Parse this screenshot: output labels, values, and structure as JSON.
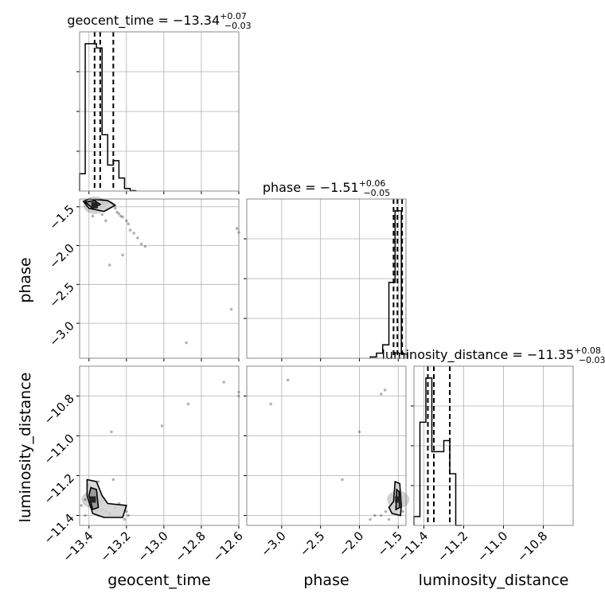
{
  "params": [
    {
      "name": "geocent_time",
      "axis_label": "geocent_time",
      "median": "−13.34",
      "plus": "+0.07",
      "minus": "−0.03",
      "range": [
        -13.45,
        -12.6
      ],
      "ticks": [
        -13.4,
        -13.2,
        -13.0,
        -12.8,
        -12.6
      ],
      "tick_labels": [
        "−13.4",
        "−13.2",
        "−13.0",
        "−12.8",
        "−12.6"
      ],
      "quantiles": [
        -13.37,
        -13.34,
        -13.27
      ]
    },
    {
      "name": "phase",
      "axis_label": "phase",
      "median": "−1.51",
      "plus": "+0.06",
      "minus": "−0.05",
      "range": [
        -3.45,
        -1.4
      ],
      "ticks": [
        -3.0,
        -2.5,
        -2.0,
        -1.5
      ],
      "tick_labels": [
        "−3.0",
        "−2.5",
        "−2.0",
        "−1.5"
      ],
      "quantiles": [
        -1.56,
        -1.51,
        -1.45
      ]
    },
    {
      "name": "luminosity_distance",
      "axis_label": "luminosity_distance",
      "median": "−11.35",
      "plus": "+0.08",
      "minus": "−0.03",
      "range": [
        -11.45,
        -10.65
      ],
      "ticks": [
        -11.4,
        -11.2,
        -11.0,
        -10.8
      ],
      "tick_labels": [
        "−11.4",
        "−11.2",
        "−11.0",
        "−10.8"
      ],
      "quantiles": [
        -11.38,
        -11.35,
        -11.27
      ]
    }
  ],
  "chart_data": {
    "type": "corner",
    "grid": true,
    "histograms": [
      {
        "param": "geocent_time",
        "bin_edges": [
          -13.45,
          -13.42,
          -13.39,
          -13.36,
          -13.33,
          -13.3,
          -13.27,
          -13.24,
          -13.21,
          -13.18,
          -13.15
        ],
        "counts": [
          4,
          34,
          34,
          33,
          13,
          6,
          7,
          3,
          0.6,
          0.1
        ]
      },
      {
        "param": "phase",
        "bin_edges": [
          -1.86,
          -1.78,
          -1.7,
          -1.62,
          -1.54,
          -1.46,
          -1.38
        ],
        "counts": [
          0.3,
          1.2,
          3.2,
          18,
          35,
          1
        ]
      },
      {
        "param": "luminosity_distance",
        "bin_edges": [
          -11.45,
          -11.42,
          -11.39,
          -11.36,
          -11.33,
          -11.3,
          -11.27,
          -11.24,
          -11.21
        ],
        "counts": [
          1.2,
          14,
          20,
          10,
          10,
          11.5,
          7,
          0
        ]
      }
    ],
    "panels_2d": [
      {
        "x": "geocent_time",
        "y": "phase",
        "core": {
          "x": -13.37,
          "y": -1.48
        },
        "points": [
          [
            -13.39,
            -1.47
          ],
          [
            -13.38,
            -1.45
          ],
          [
            -13.36,
            -1.49
          ],
          [
            -13.35,
            -1.5
          ],
          [
            -13.34,
            -1.47
          ],
          [
            -13.33,
            -1.46
          ],
          [
            -13.31,
            -1.45
          ],
          [
            -13.3,
            -1.44
          ],
          [
            -13.28,
            -1.45
          ],
          [
            -13.27,
            -1.47
          ],
          [
            -13.26,
            -1.52
          ],
          [
            -13.25,
            -1.57
          ],
          [
            -13.24,
            -1.59
          ],
          [
            -13.23,
            -1.62
          ],
          [
            -13.22,
            -1.63
          ],
          [
            -13.2,
            -1.68
          ],
          [
            -13.19,
            -1.72
          ],
          [
            -13.18,
            -1.8
          ],
          [
            -13.16,
            -1.84
          ],
          [
            -13.14,
            -1.9
          ],
          [
            -13.12,
            -1.98
          ],
          [
            -13.1,
            -2.01
          ],
          [
            -13.22,
            -2.12
          ],
          [
            -13.29,
            -2.25
          ],
          [
            -13.38,
            -1.62
          ],
          [
            -13.33,
            -1.6
          ],
          [
            -13.31,
            -1.68
          ],
          [
            -12.88,
            -3.25
          ],
          [
            -12.64,
            -2.82
          ],
          [
            -12.61,
            -1.78
          ],
          [
            -12.6,
            -1.83
          ]
        ],
        "contours": [
          [
            [
              -13.43,
              -1.43
            ],
            [
              -13.4,
              -1.4
            ],
            [
              -13.3,
              -1.42
            ],
            [
              -13.26,
              -1.48
            ],
            [
              -13.32,
              -1.56
            ],
            [
              -13.4,
              -1.52
            ],
            [
              -13.43,
              -1.43
            ]
          ],
          [
            [
              -13.42,
              -1.44
            ],
            [
              -13.37,
              -1.42
            ],
            [
              -13.34,
              -1.47
            ],
            [
              -13.38,
              -1.52
            ],
            [
              -13.42,
              -1.44
            ]
          ]
        ]
      },
      {
        "x": "geocent_time",
        "y": "luminosity_distance",
        "core": {
          "x": -13.38,
          "y": -11.32
        },
        "points": [
          [
            -13.4,
            -11.25
          ],
          [
            -13.39,
            -11.3
          ],
          [
            -13.37,
            -11.35
          ],
          [
            -13.36,
            -11.38
          ],
          [
            -13.35,
            -11.4
          ],
          [
            -13.33,
            -11.37
          ],
          [
            -13.31,
            -11.38
          ],
          [
            -13.29,
            -11.39
          ],
          [
            -13.26,
            -11.36
          ],
          [
            -13.24,
            -11.34
          ],
          [
            -13.22,
            -11.35
          ],
          [
            -13.2,
            -11.38
          ],
          [
            -13.19,
            -11.4
          ],
          [
            -13.21,
            -11.42
          ],
          [
            -13.42,
            -11.32
          ],
          [
            -13.44,
            -11.35
          ],
          [
            -13.42,
            -11.4
          ],
          [
            -13.35,
            -11.23
          ],
          [
            -13.27,
            -11.22
          ],
          [
            -13.28,
            -10.98
          ],
          [
            -13.01,
            -10.95
          ],
          [
            -12.87,
            -10.84
          ],
          [
            -12.68,
            -10.73
          ],
          [
            -12.6,
            -10.78
          ],
          [
            -12.6,
            -10.8
          ]
        ],
        "contours": [
          [
            [
              -13.41,
              -11.22
            ],
            [
              -13.36,
              -11.23
            ],
            [
              -13.33,
              -11.3
            ],
            [
              -13.3,
              -11.34
            ],
            [
              -13.2,
              -11.35
            ],
            [
              -13.22,
              -11.41
            ],
            [
              -13.32,
              -11.41
            ],
            [
              -13.38,
              -11.39
            ],
            [
              -13.41,
              -11.3
            ],
            [
              -13.41,
              -11.22
            ]
          ],
          [
            [
              -13.39,
              -11.26
            ],
            [
              -13.36,
              -11.27
            ],
            [
              -13.35,
              -11.36
            ],
            [
              -13.38,
              -11.37
            ],
            [
              -13.4,
              -11.3
            ],
            [
              -13.39,
              -11.26
            ]
          ]
        ]
      },
      {
        "x": "phase",
        "y": "luminosity_distance",
        "core": {
          "x": -1.5,
          "y": -11.32
        },
        "points": [
          [
            -1.52,
            -11.25
          ],
          [
            -1.5,
            -11.28
          ],
          [
            -1.48,
            -11.31
          ],
          [
            -1.47,
            -11.35
          ],
          [
            -1.55,
            -11.38
          ],
          [
            -1.6,
            -11.36
          ],
          [
            -1.66,
            -11.38
          ],
          [
            -1.72,
            -11.4
          ],
          [
            -1.8,
            -11.4
          ],
          [
            -1.86,
            -11.42
          ],
          [
            -1.62,
            -11.42
          ],
          [
            -1.44,
            -11.38
          ],
          [
            -2.22,
            -11.22
          ],
          [
            -2.0,
            -10.98
          ],
          [
            -1.72,
            -10.79
          ],
          [
            -1.67,
            -10.77
          ],
          [
            -2.92,
            -10.72
          ],
          [
            -3.14,
            -10.84
          ]
        ],
        "contours": [
          [
            [
              -1.54,
              -11.23
            ],
            [
              -1.48,
              -11.24
            ],
            [
              -1.46,
              -11.35
            ],
            [
              -1.47,
              -11.4
            ],
            [
              -1.58,
              -11.39
            ],
            [
              -1.62,
              -11.36
            ],
            [
              -1.56,
              -11.33
            ],
            [
              -1.54,
              -11.23
            ]
          ],
          [
            [
              -1.52,
              -11.27
            ],
            [
              -1.49,
              -11.28
            ],
            [
              -1.48,
              -11.36
            ],
            [
              -1.53,
              -11.37
            ],
            [
              -1.52,
              -11.27
            ]
          ]
        ]
      }
    ]
  }
}
